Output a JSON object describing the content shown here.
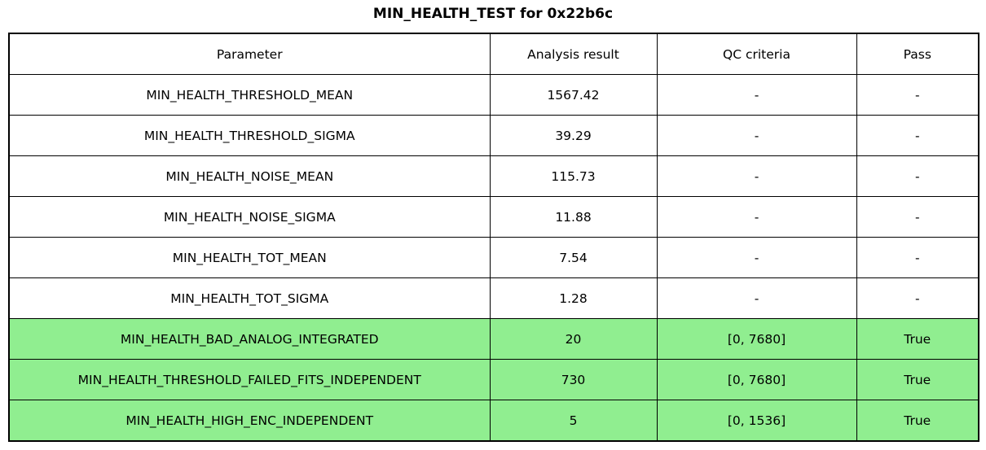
{
  "chart_data": {
    "type": "table",
    "title": "MIN_HEALTH_TEST for 0x22b6c",
    "columns": [
      "Parameter",
      "Analysis result",
      "QC criteria",
      "Pass"
    ],
    "rows": [
      [
        "MIN_HEALTH_THRESHOLD_MEAN",
        "1567.42",
        "-",
        "-"
      ],
      [
        "MIN_HEALTH_THRESHOLD_SIGMA",
        "39.29",
        "-",
        "-"
      ],
      [
        "MIN_HEALTH_NOISE_MEAN",
        "115.73",
        "-",
        "-"
      ],
      [
        "MIN_HEALTH_NOISE_SIGMA",
        "11.88",
        "-",
        "-"
      ],
      [
        "MIN_HEALTH_TOT_MEAN",
        "7.54",
        "-",
        "-"
      ],
      [
        "MIN_HEALTH_TOT_SIGMA",
        "1.28",
        "-",
        "-"
      ],
      [
        "MIN_HEALTH_BAD_ANALOG_INTEGRATED",
        "20",
        "[0, 7680]",
        "True"
      ],
      [
        "MIN_HEALTH_THRESHOLD_FAILED_FITS_INDEPENDENT",
        "730",
        "[0, 7680]",
        "True"
      ],
      [
        "MIN_HEALTH_HIGH_ENC_INDEPENDENT",
        "5",
        "[0, 1536]",
        "True"
      ]
    ],
    "highlighted_rows": [
      6,
      7,
      8
    ],
    "colors": {
      "pass_row_background": "#90ee90",
      "border": "#000000",
      "text": "#000000",
      "background": "#ffffff"
    }
  }
}
